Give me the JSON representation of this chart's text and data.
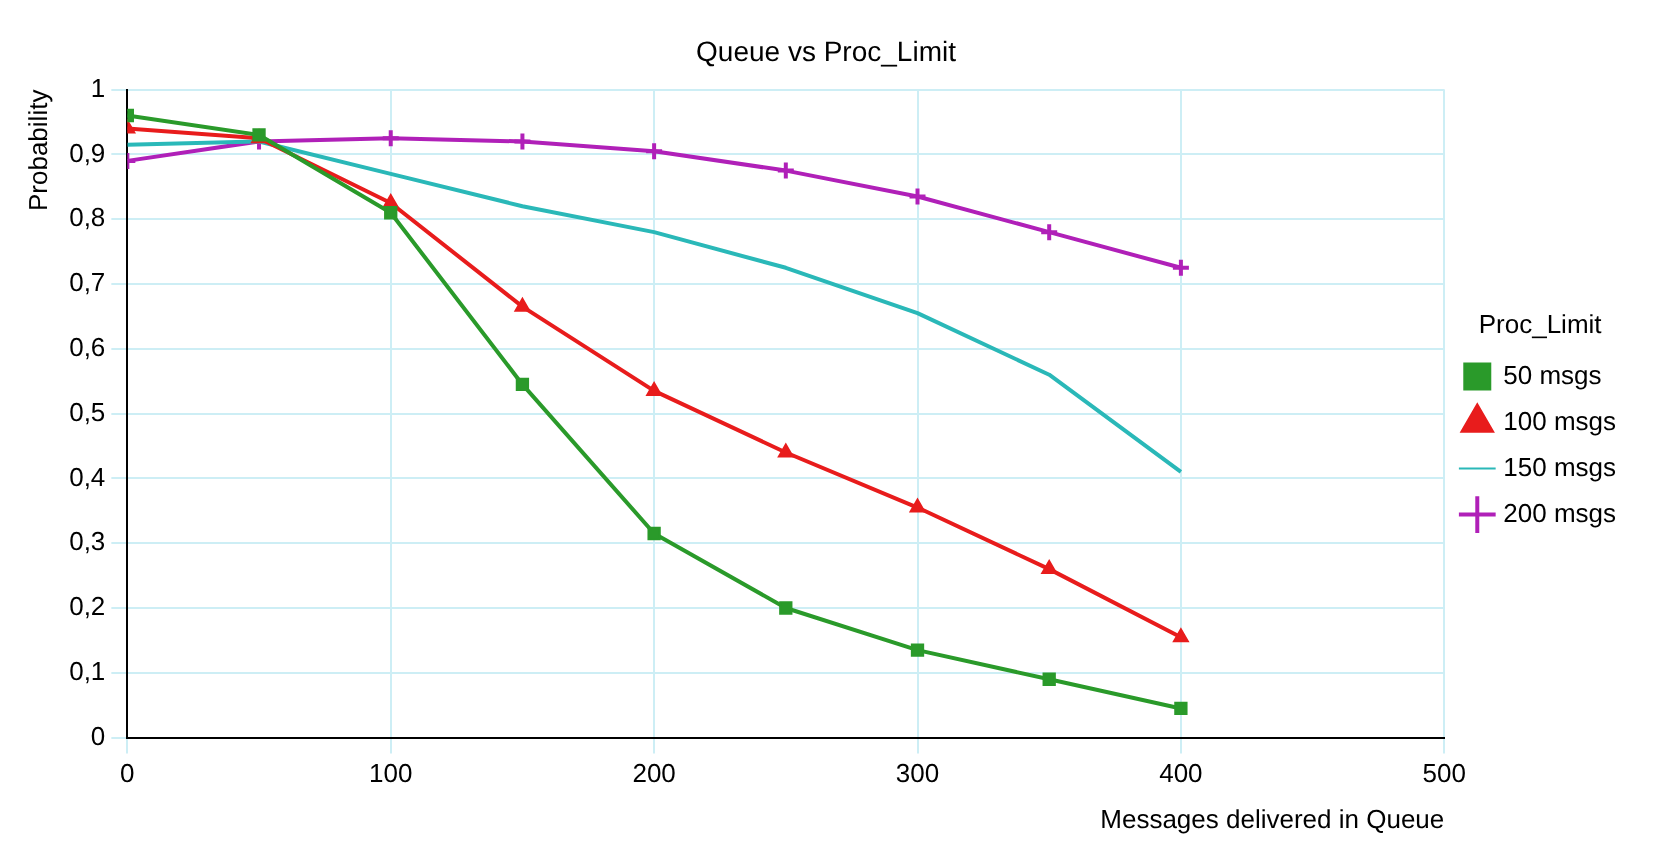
{
  "chart_data": {
    "type": "line",
    "title": "Queue vs Proc_Limit",
    "xlabel": "Messages delivered in Queue",
    "ylabel": "Probability",
    "legend_title": "Proc_Limit",
    "legend": "right",
    "grid": true,
    "x": [
      0,
      50,
      100,
      150,
      200,
      250,
      300,
      350,
      400
    ],
    "xlim": [
      0,
      500
    ],
    "xticks": [
      0,
      100,
      200,
      300,
      400,
      500
    ],
    "ylim": [
      0,
      1
    ],
    "yticks": [
      0,
      {
        "value": 0.1,
        "label": "0,1"
      },
      {
        "value": 0.2,
        "label": "0,2"
      },
      {
        "value": 0.3,
        "label": "0,3"
      },
      {
        "value": 0.4,
        "label": "0,4"
      },
      {
        "value": 0.5,
        "label": "0,5"
      },
      {
        "value": 0.6,
        "label": "0,6"
      },
      {
        "value": 0.7,
        "label": "0,7"
      },
      {
        "value": 0.8,
        "label": "0,8"
      },
      {
        "value": 0.9,
        "label": "0,9"
      },
      1
    ],
    "series": [
      {
        "name": "50 msgs",
        "color": "#2a9a2a",
        "marker": "square",
        "values": [
          0.96,
          0.93,
          0.81,
          0.545,
          0.315,
          0.2,
          0.135,
          0.09,
          0.045
        ]
      },
      {
        "name": "100 msgs",
        "color": "#e81c1c",
        "marker": "triangle",
        "values": [
          0.94,
          0.925,
          0.825,
          0.665,
          0.535,
          0.44,
          0.355,
          0.26,
          0.155
        ]
      },
      {
        "name": "150 msgs",
        "color": "#2ab8b8",
        "marker": "none",
        "values": [
          0.915,
          0.92,
          0.87,
          0.82,
          0.78,
          0.725,
          0.655,
          0.56,
          0.41
        ]
      },
      {
        "name": "200 msgs",
        "color": "#b020b8",
        "marker": "cross",
        "values": [
          0.89,
          0.92,
          0.925,
          0.92,
          0.905,
          0.875,
          0.835,
          0.78,
          0.725
        ]
      }
    ]
  }
}
